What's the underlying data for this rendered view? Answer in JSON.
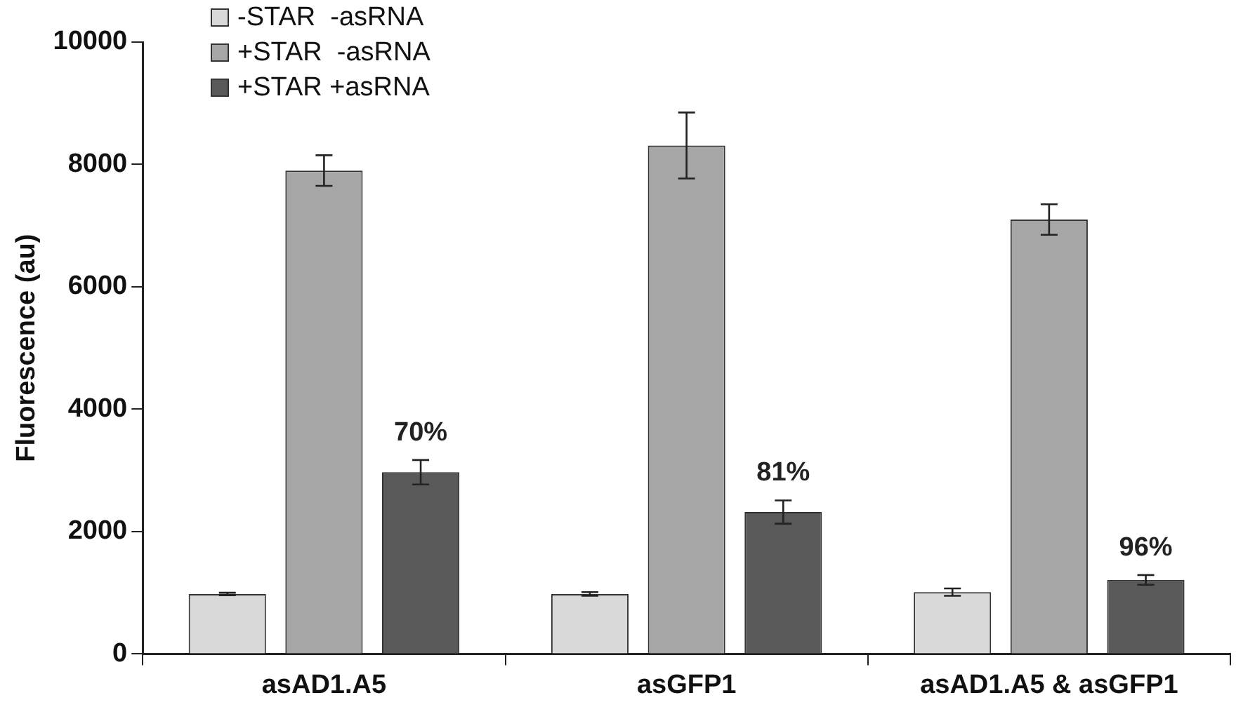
{
  "chart_data": {
    "type": "bar",
    "ylabel": "Fluorescence (au)",
    "categories": [
      "asAD1.A5",
      "asGFP1",
      "asAD1.A5 & asGFP1"
    ],
    "series": [
      {
        "name": "-STAR  -asRNA",
        "color": "#d9d9d9",
        "values": [
          980,
          980,
          1010
        ],
        "errors": [
          20,
          30,
          60
        ]
      },
      {
        "name": "+STAR  -asRNA",
        "color": "#a6a6a6",
        "values": [
          7900,
          8310,
          7100
        ],
        "errors": [
          250,
          540,
          250
        ]
      },
      {
        "name": "+STAR +asRNA",
        "color": "#595959",
        "values": [
          2970,
          2320,
          1210
        ],
        "errors": [
          200,
          190,
          80
        ]
      }
    ],
    "ylim": [
      0,
      10000
    ],
    "yticks": [
      0,
      2000,
      4000,
      6000,
      8000,
      10000
    ],
    "grid": false,
    "legend": "top left",
    "annotations": [
      "70%",
      "81%",
      "96%"
    ]
  }
}
